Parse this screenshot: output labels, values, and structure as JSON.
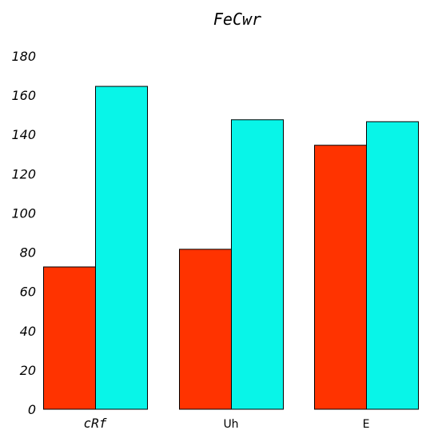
{
  "chart_data": {
    "type": "bar",
    "title": "FeCwr",
    "categories": [
      "cRf",
      "Uh",
      "E"
    ],
    "category_styles": [
      "mono-italic",
      "normal",
      "normal"
    ],
    "series": [
      {
        "values": [
          72.5,
          81.5,
          134.5
        ],
        "color": "#ff3300"
      },
      {
        "values": [
          164.5,
          147.5,
          146.5
        ],
        "color": "#08f5e8"
      }
    ],
    "yticks": [
      0,
      20,
      40,
      60,
      80,
      100,
      120,
      140,
      160,
      180
    ],
    "ylim": [
      0,
      180
    ],
    "xlabel": "",
    "ylabel": "",
    "grid": false,
    "legend": "none"
  }
}
